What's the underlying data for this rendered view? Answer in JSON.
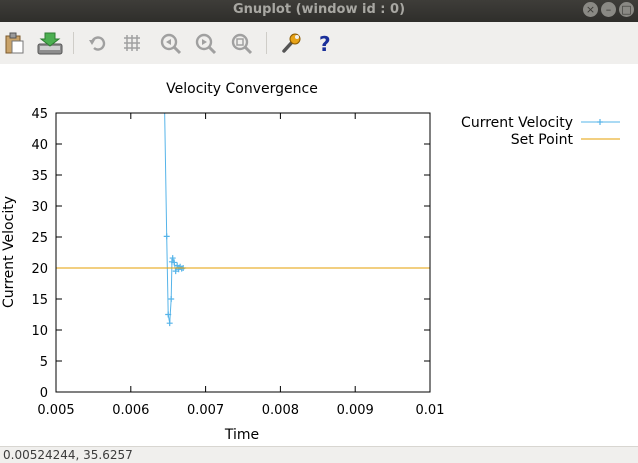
{
  "window": {
    "title": "Gnuplot (window id : 0)"
  },
  "toolbar": {
    "icons": [
      "clipboard-icon",
      "export-icon",
      "replot-icon",
      "grid-icon",
      "zoom-previous-icon",
      "zoom-next-icon",
      "autoscale-icon",
      "settings-icon",
      "help-icon"
    ]
  },
  "status": {
    "coordinates": "0.00524244,  35.6257"
  },
  "colors": {
    "current_velocity": "#56b4e9",
    "set_point": "#e69f00"
  },
  "chart_data": {
    "type": "line",
    "title": "Velocity Convergence",
    "xlabel": "Time",
    "ylabel": "Current Velocity",
    "xlim": [
      0.005,
      0.01
    ],
    "ylim": [
      0,
      45
    ],
    "x_ticks": [
      "0.005",
      "0.006",
      "0.007",
      "0.008",
      "0.009",
      "0.01"
    ],
    "y_ticks": [
      "0",
      "5",
      "10",
      "15",
      "20",
      "25",
      "30",
      "35",
      "40",
      "45"
    ],
    "legend_position": "outside-top-right",
    "series": [
      {
        "name": "Current Velocity",
        "style": "linespoints",
        "x": [
          0.00645,
          0.00648,
          0.0065,
          0.00652,
          0.00654,
          0.00655,
          0.00656,
          0.00658,
          0.0066,
          0.00662,
          0.00664,
          0.00666,
          0.00668,
          0.0067
        ],
        "y": [
          47,
          25.1,
          12.5,
          11.1,
          15,
          21,
          21.6,
          20.9,
          19.5,
          20.4,
          19.8,
          20.2,
          19.9,
          20.0
        ]
      },
      {
        "name": "Set Point",
        "style": "line",
        "x": [
          0.005,
          0.01
        ],
        "y": [
          20,
          20
        ]
      }
    ]
  }
}
